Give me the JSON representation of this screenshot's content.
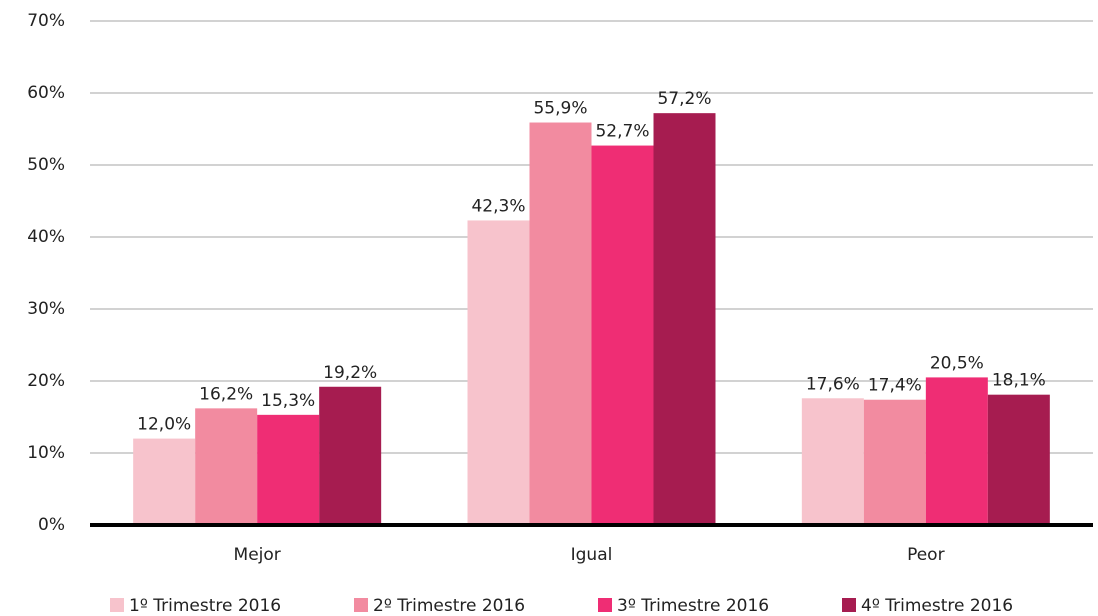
{
  "chart_data": {
    "type": "bar",
    "categories": [
      "Mejor",
      "Igual",
      "Peor"
    ],
    "series": [
      {
        "name": "1º Trimestre 2016",
        "color": "#f7c3cc",
        "values": [
          12.0,
          42.3,
          17.6
        ],
        "value_labels": [
          "12,0%",
          "42,3%",
          "17,6%"
        ]
      },
      {
        "name": "2º Trimestre 2016",
        "color": "#f28ba0",
        "values": [
          16.2,
          55.9,
          17.4
        ],
        "value_labels": [
          "16,2%",
          "55,9%",
          "17,4%"
        ]
      },
      {
        "name": "3º Trimestre 2016",
        "color": "#ef2d74",
        "values": [
          15.3,
          52.7,
          20.5
        ],
        "value_labels": [
          "15,3%",
          "52,7%",
          "20,5%"
        ]
      },
      {
        "name": "4º Trimestre 2016",
        "color": "#a61c50",
        "values": [
          19.2,
          57.2,
          18.1
        ],
        "value_labels": [
          "19,2%",
          "57,2%",
          "18,1%"
        ]
      }
    ],
    "ylim": [
      0,
      70
    ],
    "yticks": [
      {
        "value": 0,
        "label": "0%"
      },
      {
        "value": 10,
        "label": "10%"
      },
      {
        "value": 20,
        "label": "20%"
      },
      {
        "value": 30,
        "label": "30%"
      },
      {
        "value": 40,
        "label": "40%"
      },
      {
        "value": 50,
        "label": "50%"
      },
      {
        "value": 60,
        "label": "60%"
      },
      {
        "value": 70,
        "label": "70%"
      }
    ],
    "grid": true,
    "legend": "bottom"
  }
}
